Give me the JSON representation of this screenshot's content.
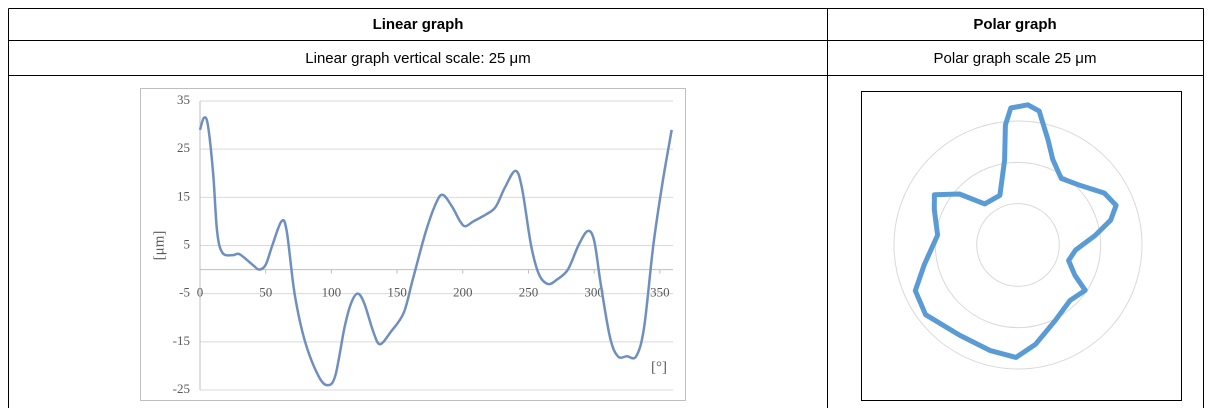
{
  "table": {
    "header": [
      "Linear graph",
      "Polar graph"
    ],
    "captions": [
      "Linear graph vertical scale: 25 μm",
      "Polar graph scale 25 μm"
    ]
  },
  "chart_data": [
    {
      "type": "line",
      "ylabel": "[μm]",
      "xlabel": "[°]",
      "x": [
        0,
        3,
        6,
        10,
        13,
        17,
        25,
        30,
        40,
        45,
        50,
        55,
        62,
        66,
        72,
        80,
        90,
        97,
        103,
        110,
        115,
        120,
        125,
        132,
        137,
        145,
        155,
        162,
        172,
        180,
        185,
        192,
        198,
        202,
        208,
        218,
        225,
        232,
        240,
        245,
        252,
        258,
        265,
        272,
        280,
        288,
        295,
        300,
        305,
        312,
        318,
        325,
        332,
        338,
        345,
        352,
        359
      ],
      "series": [
        {
          "color": "#6f8fc0",
          "values": [
            29,
            31.5,
            30,
            20,
            8,
            3.5,
            3,
            3.2,
            1,
            0,
            1,
            5,
            10,
            8,
            -5,
            -15,
            -22,
            -24,
            -22,
            -12,
            -7,
            -5,
            -7,
            -13,
            -15.5,
            -13,
            -9,
            -2,
            8,
            14,
            15.5,
            13,
            10,
            9,
            10,
            11.5,
            13,
            17,
            20.5,
            17,
            5,
            -1,
            -3,
            -2,
            0,
            5,
            8,
            6,
            -3,
            -14,
            -18,
            -18,
            -18,
            -12,
            5,
            18,
            29
          ]
        }
      ],
      "xlim": [
        0,
        360
      ],
      "ylim": [
        -25,
        35
      ],
      "xticks": [
        0,
        50,
        100,
        150,
        200,
        250,
        300,
        350
      ],
      "yticks": [
        35,
        25,
        15,
        5,
        -5,
        -15,
        -25
      ],
      "grid": true
    },
    {
      "type": "polar",
      "color": "#5b9bd5",
      "theta": [
        4,
        9,
        16,
        22,
        33,
        46,
        59,
        68,
        75,
        83,
        95,
        107,
        118,
        124,
        137,
        154,
        170,
        181,
        195,
        213,
        233,
        246,
        258,
        277,
        293,
        301,
        311,
        321,
        340,
        351,
        354,
        357
      ],
      "r": [
        85,
        82,
        66,
        56,
        48,
        52,
        61,
        64,
        58,
        47,
        35,
        32,
        39,
        49,
        46,
        51,
        61,
        68,
        66,
        65,
        70,
        68,
        58,
        49,
        55,
        59,
        47,
        32,
        32,
        52,
        73,
        83
      ],
      "rlim": [
        0,
        75
      ],
      "rticks": [
        25,
        50,
        75
      ],
      "grid": true
    }
  ]
}
